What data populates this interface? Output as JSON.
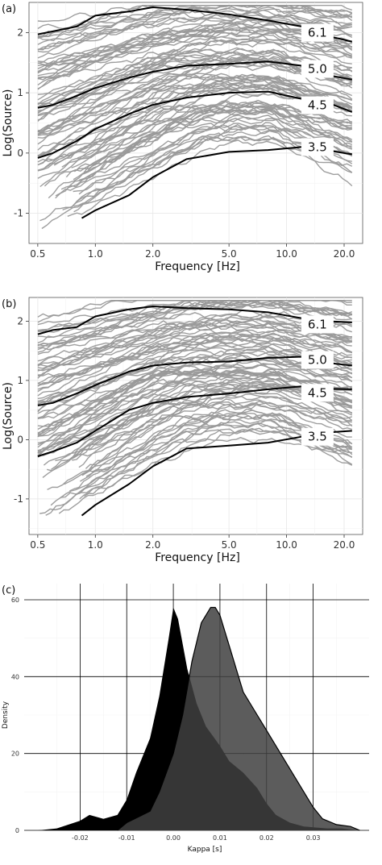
{
  "chart_data": [
    {
      "panel_label": "(a)",
      "type": "line",
      "xlabel": "Frequency [Hz]",
      "ylabel": "Log(Source)",
      "x_scale": "log",
      "xlim": [
        0.45,
        25
      ],
      "ylim": [
        -1.5,
        2.5
      ],
      "x_ticks": [
        0.5,
        1.0,
        2.0,
        5.0,
        10.0,
        20.0
      ],
      "x_tick_labels": [
        "0.5",
        "1.0",
        "2.0",
        "5.0",
        "10.0",
        "20.0"
      ],
      "y_ticks": [
        -1,
        0,
        1,
        2
      ],
      "y_tick_labels": [
        "-1",
        "0",
        "1",
        "2"
      ],
      "grid": true,
      "highlight_color": "#000000",
      "background_series_color": "#999999",
      "highlighted_series": [
        {
          "label": "6.1",
          "x": [
            0.5,
            0.6,
            0.8,
            1.0,
            1.5,
            2.0,
            3.0,
            5.0,
            8.0,
            12.0,
            16.0,
            22.0
          ],
          "y": [
            1.97,
            2.02,
            2.1,
            2.28,
            2.35,
            2.42,
            2.38,
            2.3,
            2.2,
            2.1,
            1.95,
            1.85
          ]
        },
        {
          "label": "5.0",
          "x": [
            0.5,
            0.6,
            0.8,
            1.0,
            1.5,
            2.0,
            3.0,
            5.0,
            8.0,
            12.0,
            16.0,
            22.0
          ],
          "y": [
            0.75,
            0.8,
            0.95,
            1.08,
            1.25,
            1.35,
            1.45,
            1.48,
            1.52,
            1.45,
            1.3,
            1.22
          ]
        },
        {
          "label": "4.5",
          "x": [
            0.5,
            0.6,
            0.8,
            1.0,
            1.5,
            2.0,
            3.0,
            5.0,
            8.0,
            12.0,
            16.0,
            22.0
          ],
          "y": [
            -0.08,
            0.0,
            0.2,
            0.4,
            0.65,
            0.8,
            0.92,
            1.0,
            1.02,
            0.9,
            0.85,
            0.68
          ]
        },
        {
          "label": "3.5",
          "x": [
            0.85,
            1.0,
            1.5,
            2.0,
            3.0,
            5.0,
            8.0,
            12.0,
            16.0,
            22.0
          ],
          "y": [
            -1.08,
            -0.95,
            -0.7,
            -0.4,
            -0.1,
            0.02,
            0.05,
            0.1,
            0.05,
            -0.02
          ]
        }
      ],
      "magnitude_labels": [
        "6.1",
        "5.0",
        "4.5",
        "3.5"
      ]
    },
    {
      "panel_label": "(b)",
      "type": "line",
      "xlabel": "Frequency [Hz]",
      "ylabel": "Log(Source)",
      "x_scale": "log",
      "xlim": [
        0.45,
        25
      ],
      "ylim": [
        -1.6,
        2.4
      ],
      "x_ticks": [
        0.5,
        1.0,
        2.0,
        5.0,
        10.0,
        20.0
      ],
      "x_tick_labels": [
        "0.5",
        "1.0",
        "2.0",
        "5.0",
        "10.0",
        "20.0"
      ],
      "y_ticks": [
        -1,
        0,
        1,
        2
      ],
      "y_tick_labels": [
        "-1",
        "0",
        "1",
        "2"
      ],
      "grid": true,
      "highlight_color": "#000000",
      "background_series_color": "#999999",
      "highlighted_series": [
        {
          "label": "6.1",
          "x": [
            0.5,
            0.6,
            0.8,
            1.0,
            1.5,
            2.0,
            3.0,
            5.0,
            8.0,
            12.0,
            16.0,
            22.0
          ],
          "y": [
            1.78,
            1.85,
            1.9,
            2.08,
            2.2,
            2.25,
            2.22,
            2.2,
            2.15,
            2.05,
            2.0,
            1.98
          ]
        },
        {
          "label": "5.0",
          "x": [
            0.5,
            0.6,
            0.8,
            1.0,
            1.5,
            2.0,
            3.0,
            5.0,
            8.0,
            12.0,
            16.0,
            22.0
          ],
          "y": [
            0.58,
            0.62,
            0.78,
            0.92,
            1.15,
            1.25,
            1.3,
            1.32,
            1.38,
            1.4,
            1.3,
            1.25
          ]
        },
        {
          "label": "4.5",
          "x": [
            0.5,
            0.6,
            0.8,
            1.0,
            1.5,
            2.0,
            3.0,
            5.0,
            8.0,
            12.0,
            16.0,
            22.0
          ],
          "y": [
            -0.28,
            -0.2,
            -0.05,
            0.15,
            0.5,
            0.62,
            0.72,
            0.78,
            0.85,
            0.9,
            0.86,
            0.85
          ]
        },
        {
          "label": "3.5",
          "x": [
            0.85,
            1.0,
            1.5,
            2.0,
            3.0,
            5.0,
            8.0,
            12.0,
            16.0,
            22.0
          ],
          "y": [
            -1.28,
            -1.1,
            -0.75,
            -0.45,
            -0.15,
            -0.1,
            -0.05,
            0.05,
            0.12,
            0.15
          ]
        }
      ],
      "magnitude_labels": [
        "6.1",
        "5.0",
        "4.5",
        "3.5"
      ]
    },
    {
      "panel_label": "(c)",
      "type": "area",
      "xlabel": "Kappa [s]",
      "ylabel": "Density",
      "xlim": [
        -0.032,
        0.042
      ],
      "ylim": [
        0,
        60
      ],
      "x_ticks": [
        -0.02,
        -0.01,
        0.0,
        0.01,
        0.02,
        0.03
      ],
      "x_tick_labels": [
        "-0.02",
        "-0.01",
        "0.00",
        "0.01",
        "0.02",
        "0.03"
      ],
      "y_ticks": [
        0,
        20,
        40,
        60
      ],
      "y_tick_labels": [
        "0",
        "20",
        "40",
        "60"
      ],
      "grid": true,
      "series": [
        {
          "fill": "#000000",
          "x": [
            -0.029,
            -0.025,
            -0.02,
            -0.018,
            -0.015,
            -0.012,
            -0.01,
            -0.008,
            -0.005,
            -0.003,
            -0.001,
            0.0,
            0.001,
            0.003,
            0.005,
            0.007,
            0.01,
            0.012,
            0.015,
            0.018,
            0.02,
            0.022,
            0.025,
            0.028,
            0.03,
            0.033,
            0.036,
            0.04
          ],
          "y": [
            0,
            0.5,
            2.5,
            4.0,
            3.0,
            4.0,
            8.0,
            15.0,
            24.0,
            35.0,
            50.0,
            58.0,
            55.0,
            42.0,
            33.0,
            27.0,
            22.0,
            18.0,
            15.0,
            11.0,
            7.0,
            4.0,
            2.0,
            1.0,
            0.8,
            0.5,
            0.5,
            0
          ]
        },
        {
          "fill": "#404040",
          "x": [
            -0.012,
            -0.01,
            -0.005,
            -0.003,
            0.0,
            0.002,
            0.004,
            0.006,
            0.008,
            0.009,
            0.01,
            0.012,
            0.015,
            0.018,
            0.02,
            0.022,
            0.024,
            0.026,
            0.028,
            0.03,
            0.032,
            0.035,
            0.038,
            0.04
          ],
          "y": [
            0,
            2,
            5,
            10,
            20,
            30,
            44,
            54,
            58,
            58,
            56,
            48,
            36,
            30,
            26,
            22,
            18,
            14,
            10,
            6,
            3,
            1.5,
            1,
            0
          ]
        }
      ]
    }
  ]
}
